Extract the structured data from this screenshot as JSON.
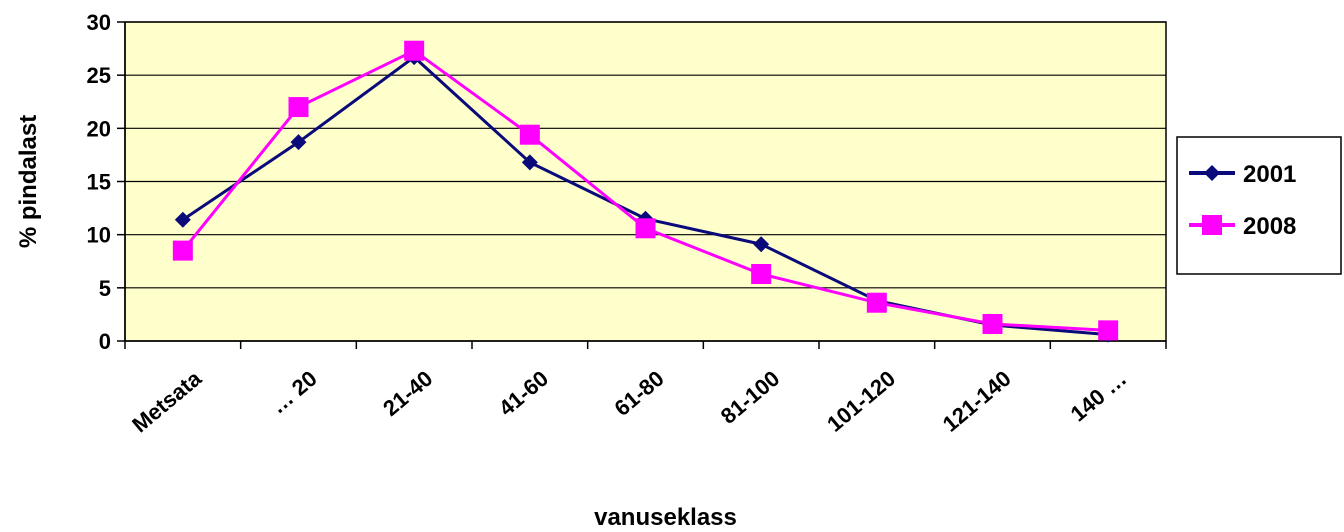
{
  "chart_data": {
    "type": "line",
    "title": "",
    "xlabel": "vanuseklass",
    "ylabel": "% pindalast",
    "ylim": [
      0,
      30
    ],
    "yticks": [
      0,
      5,
      10,
      15,
      20,
      25,
      30
    ],
    "categories": [
      "Metsata",
      "… 20",
      "21-40",
      "41-60",
      "61-80",
      "81-100",
      "101-120",
      "121-140",
      "140 …"
    ],
    "series": [
      {
        "name": "2001",
        "color": "#0a0a7a",
        "marker": "diamond",
        "values": [
          11.4,
          18.7,
          26.7,
          16.8,
          11.5,
          9.1,
          3.8,
          1.5,
          0.6
        ]
      },
      {
        "name": "2008",
        "color": "#ff00ff",
        "marker": "square",
        "values": [
          8.5,
          22.0,
          27.3,
          19.4,
          10.6,
          6.3,
          3.6,
          1.6,
          1.0
        ]
      }
    ],
    "plot_background": "#ffffcc",
    "grid": true,
    "legend_position": "right"
  }
}
